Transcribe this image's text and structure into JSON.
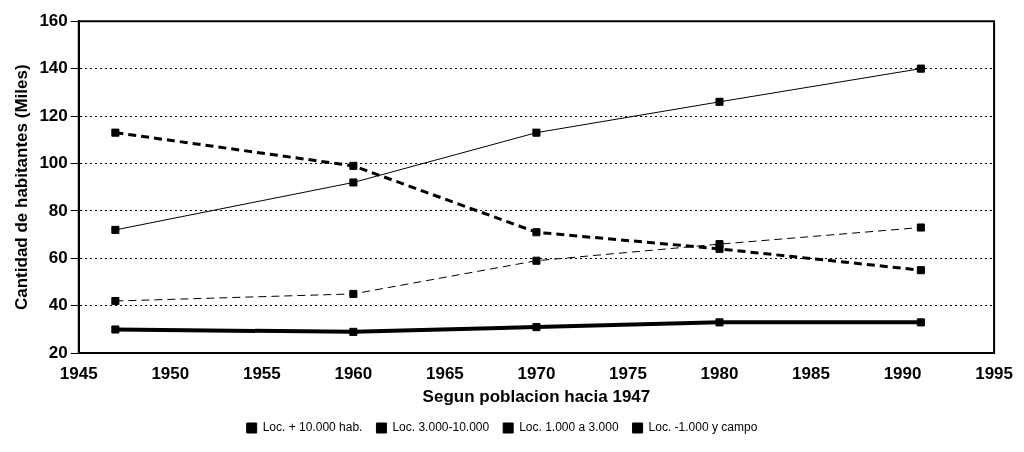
{
  "chart_data": {
    "type": "line",
    "xlabel": "Segun poblacion hacia 1947",
    "ylabel": "Cantidad de habitantes (Miles)",
    "x": [
      1947,
      1960,
      1970,
      1980,
      1991
    ],
    "series": [
      {
        "name": "Loc. + 10.000 hab.",
        "color": "#000000",
        "values": [
          72,
          92,
          113,
          126,
          140
        ],
        "line_style": "solid"
      },
      {
        "name": "Loc. 3.000-10.000",
        "color": "#000000",
        "values": [
          42,
          45,
          59,
          66,
          73
        ],
        "line_style": "dashed"
      },
      {
        "name": "Loc. 1.000 a 3.000",
        "color": "#000000",
        "values": [
          30,
          29,
          31,
          33,
          33
        ],
        "line_style": "solid"
      },
      {
        "name": "Loc. -1.000 y campo",
        "color": "#000000",
        "values": [
          113,
          99,
          71,
          64,
          55
        ],
        "line_style": "dashed"
      }
    ],
    "xlim": [
      1945,
      1995
    ],
    "xticks": [
      1945,
      1950,
      1955,
      1960,
      1965,
      1970,
      1975,
      1980,
      1985,
      1990,
      1995
    ],
    "ylim": [
      20,
      160
    ],
    "yticks": [
      20,
      40,
      60,
      80,
      100,
      120,
      140,
      160
    ],
    "grid": "y",
    "legend": "bottom",
    "marker": "square"
  }
}
